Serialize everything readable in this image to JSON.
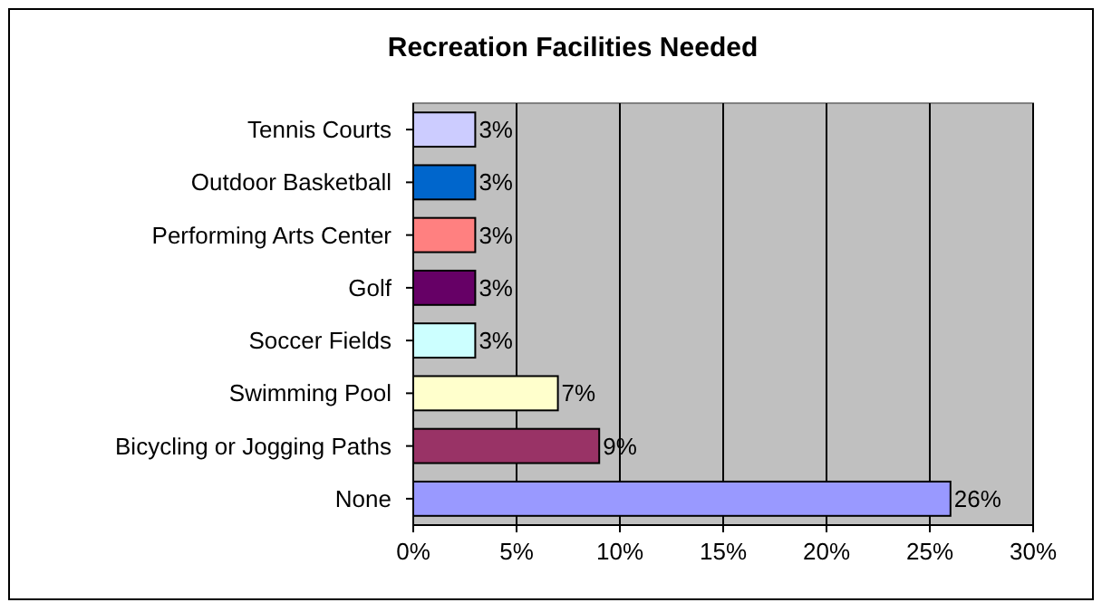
{
  "chart_data": {
    "type": "bar",
    "orientation": "horizontal",
    "title": "Recreation Facilities Needed",
    "categories": [
      "Tennis Courts",
      "Outdoor Basketball",
      "Performing Arts Center",
      "Golf",
      "Soccer Fields",
      "Swimming Pool",
      "Bicycling or Jogging Paths",
      "None"
    ],
    "values": [
      3,
      3,
      3,
      3,
      3,
      7,
      9,
      26
    ],
    "colors": [
      "#ccccff",
      "#0066cc",
      "#ff8080",
      "#660066",
      "#ccffff",
      "#ffffcc",
      "#993366",
      "#9999ff"
    ],
    "value_labels": [
      "3%",
      "3%",
      "3%",
      "3%",
      "3%",
      "7%",
      "9%",
      "26%"
    ],
    "xlim": [
      0,
      30
    ],
    "xticks": [
      {
        "value": 0,
        "label": "0%"
      },
      {
        "value": 5,
        "label": "5%"
      },
      {
        "value": 10,
        "label": "10%"
      },
      {
        "value": 15,
        "label": "15%"
      },
      {
        "value": 20,
        "label": "20%"
      },
      {
        "value": 25,
        "label": "25%"
      },
      {
        "value": 30,
        "label": "30%"
      }
    ],
    "grid": "x"
  }
}
